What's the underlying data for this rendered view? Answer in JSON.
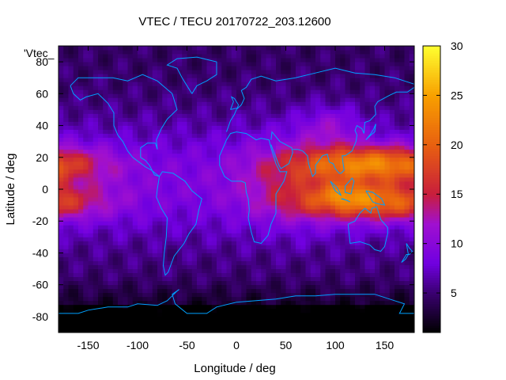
{
  "chart_data": {
    "type": "heatmap",
    "title": "VTEC / TECU 20170722_203.12600",
    "xlabel": "Longitude / deg",
    "ylabel": "Latitude / deg",
    "key_label": "'Vtec_",
    "xlim": [
      -180,
      180
    ],
    "ylim": [
      -90,
      90
    ],
    "x_ticks": [
      -150,
      -100,
      -50,
      0,
      50,
      100,
      150
    ],
    "y_ticks": [
      -80,
      -60,
      -40,
      -20,
      0,
      20,
      40,
      60,
      80
    ],
    "x_tick_labels": [
      "-150",
      "-100",
      "-50",
      "0",
      "50",
      "100",
      "150"
    ],
    "y_tick_labels": [
      "-80",
      "-60",
      "-40",
      "-20",
      "0",
      "20",
      "40",
      "60",
      "80"
    ],
    "colorbar": {
      "range": [
        1,
        30
      ],
      "ticks": [
        5,
        10,
        15,
        20,
        25,
        30
      ],
      "tick_labels": [
        "5",
        "10",
        "15",
        "20",
        "25",
        "30"
      ],
      "colormap": "black-purple-red-orange-yellow"
    },
    "colormap_stops": [
      {
        "v": 1,
        "color": "#000000"
      },
      {
        "v": 5,
        "color": "#3a0070"
      },
      {
        "v": 8,
        "color": "#7000e0"
      },
      {
        "v": 12,
        "color": "#a010d0"
      },
      {
        "v": 15,
        "color": "#c81e3c"
      },
      {
        "v": 20,
        "color": "#e86010"
      },
      {
        "v": 25,
        "color": "#f8a000"
      },
      {
        "v": 30,
        "color": "#ffff30"
      }
    ],
    "grid": false,
    "coastline_color": "#00a0ff"
  }
}
